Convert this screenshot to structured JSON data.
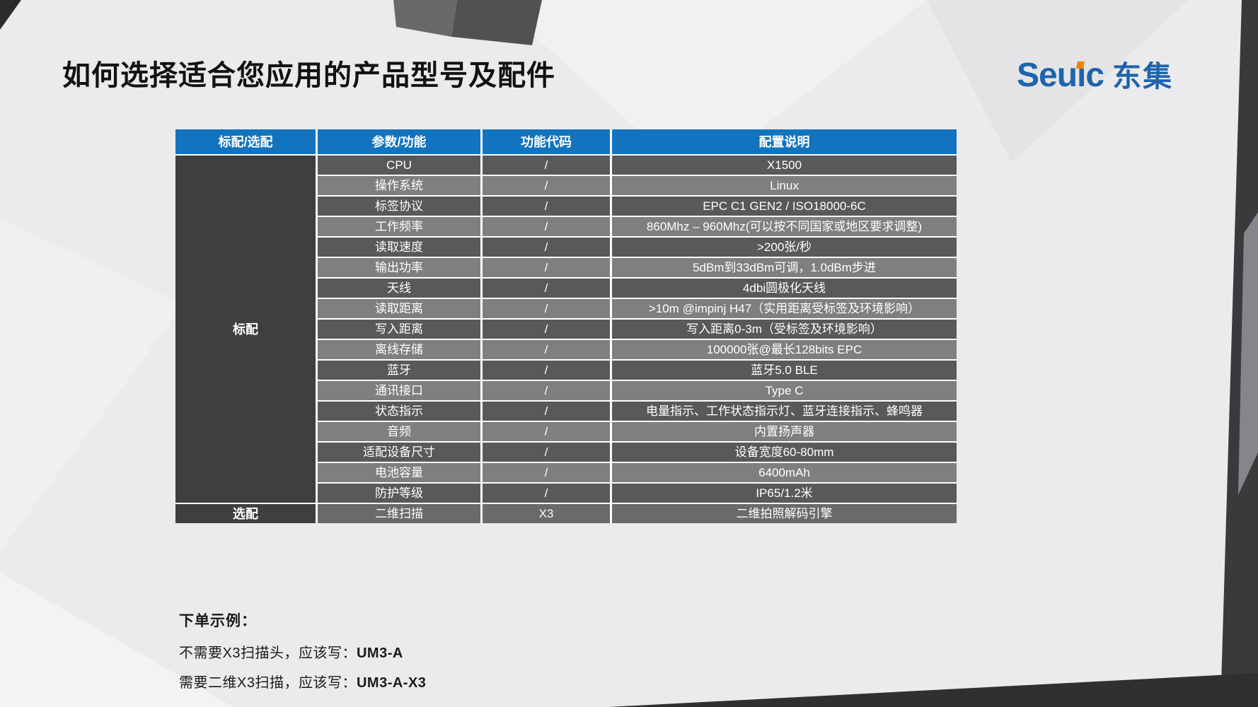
{
  "slide": {
    "title": "如何选择适合您应用的产品型号及配件"
  },
  "logo": {
    "latin_pre": "Seu",
    "latin_i": "ı",
    "latin_post": "c",
    "cjk": "东集"
  },
  "table": {
    "headers": [
      "标配/选配",
      "参数/功能",
      "功能代码",
      "配置说明"
    ],
    "standard_label": "标配",
    "optional_label": "选配",
    "standard_rows": [
      {
        "param": "CPU",
        "code": "/",
        "desc": "X1500"
      },
      {
        "param": "操作系统",
        "code": "/",
        "desc": "Linux"
      },
      {
        "param": "标签协议",
        "code": "/",
        "desc": "EPC C1 GEN2 / ISO18000-6C"
      },
      {
        "param": "工作频率",
        "code": "/",
        "desc": "860Mhz – 960Mhz(可以按不同国家或地区要求调整)"
      },
      {
        "param": "读取速度",
        "code": "/",
        "desc": ">200张/秒"
      },
      {
        "param": "输出功率",
        "code": "/",
        "desc": "5dBm到33dBm可调，1.0dBm步进"
      },
      {
        "param": "天线",
        "code": "/",
        "desc": "4dbi圆极化天线"
      },
      {
        "param": "读取距离",
        "code": "/",
        "desc": ">10m @impinj H47（实用距离受标签及环境影响）"
      },
      {
        "param": "写入距离",
        "code": "/",
        "desc": "写入距离0-3m（受标签及环境影响）"
      },
      {
        "param": "离线存储",
        "code": "/",
        "desc": "100000张@最长128bits EPC"
      },
      {
        "param": "蓝牙",
        "code": "/",
        "desc": "蓝牙5.0 BLE"
      },
      {
        "param": "通讯接口",
        "code": "/",
        "desc": "Type C"
      },
      {
        "param": "状态指示",
        "code": "/",
        "desc": "电量指示、工作状态指示灯、蓝牙连接指示、蜂鸣器"
      },
      {
        "param": "音频",
        "code": "/",
        "desc": "内置扬声器"
      },
      {
        "param": "适配设备尺寸",
        "code": "/",
        "desc": "设备宽度60-80mm"
      },
      {
        "param": "电池容量",
        "code": "/",
        "desc": "6400mAh"
      },
      {
        "param": "防护等级",
        "code": "/",
        "desc": "IP65/1.2米"
      }
    ],
    "optional_rows": [
      {
        "param": "二维扫描",
        "code": "X3",
        "desc": "二维拍照解码引擎"
      }
    ]
  },
  "footer": {
    "heading": "下单示例：",
    "lines": [
      {
        "prefix": "不需要X3扫描头，应该写：",
        "model": "UM3-A"
      },
      {
        "prefix": "需要二维X3扫描，应该写：",
        "model": "UM3-A-X3"
      }
    ]
  },
  "colors": {
    "header_blue": "#1273BE",
    "row_dark": "#595959",
    "row_light": "#7F7F7F",
    "group_cell": "#3F3F3F",
    "optional_row": "#6A6A6A",
    "logo_blue": "#1E64AC",
    "logo_orange": "#F08300"
  }
}
